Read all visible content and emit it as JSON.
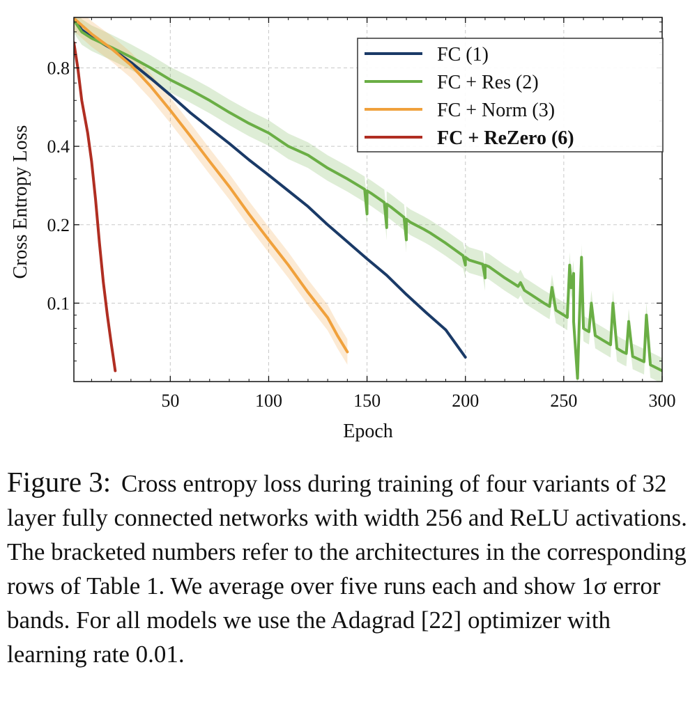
{
  "chart_data": {
    "type": "line",
    "xlabel": "Epoch",
    "ylabel": "Cross Entropy Loss",
    "xlim": [
      1,
      300
    ],
    "xticks": [
      50,
      100,
      150,
      200,
      250,
      300
    ],
    "ylim": [
      0.05,
      1.25
    ],
    "yscale": "log",
    "yticks": [
      0.1,
      0.2,
      0.4,
      0.8
    ],
    "grid": true,
    "legend_position": "top-right",
    "series": [
      {
        "name": "FC (1)",
        "color": "#1a3a67",
        "band": false,
        "points": [
          [
            1,
            1.23
          ],
          [
            5,
            1.12
          ],
          [
            10,
            1.05
          ],
          [
            20,
            0.95
          ],
          [
            30,
            0.84
          ],
          [
            40,
            0.73
          ],
          [
            50,
            0.63
          ],
          [
            60,
            0.54
          ],
          [
            70,
            0.47
          ],
          [
            80,
            0.41
          ],
          [
            90,
            0.355
          ],
          [
            100,
            0.31
          ],
          [
            110,
            0.27
          ],
          [
            120,
            0.235
          ],
          [
            130,
            0.2
          ],
          [
            140,
            0.172
          ],
          [
            150,
            0.148
          ],
          [
            160,
            0.128
          ],
          [
            170,
            0.108
          ],
          [
            180,
            0.092
          ],
          [
            190,
            0.079
          ],
          [
            195,
            0.07
          ],
          [
            200,
            0.062
          ]
        ]
      },
      {
        "name": "FC + Res (2)",
        "color": "#6aae45",
        "band": true,
        "points": [
          [
            1,
            1.22
          ],
          [
            5,
            1.1
          ],
          [
            10,
            1.04
          ],
          [
            20,
            0.96
          ],
          [
            30,
            0.88
          ],
          [
            40,
            0.8
          ],
          [
            50,
            0.72
          ],
          [
            60,
            0.66
          ],
          [
            70,
            0.6
          ],
          [
            80,
            0.54
          ],
          [
            90,
            0.49
          ],
          [
            100,
            0.45
          ],
          [
            110,
            0.4
          ],
          [
            120,
            0.37
          ],
          [
            130,
            0.33
          ],
          [
            140,
            0.3
          ],
          [
            150,
            0.27
          ],
          [
            160,
            0.24
          ],
          [
            170,
            0.21
          ],
          [
            180,
            0.19
          ],
          [
            190,
            0.17
          ],
          [
            200,
            0.15
          ],
          [
            210,
            0.14
          ],
          [
            220,
            0.125
          ],
          [
            230,
            0.112
          ],
          [
            240,
            0.1
          ],
          [
            250,
            0.09
          ],
          [
            260,
            0.08
          ],
          [
            270,
            0.072
          ],
          [
            280,
            0.065
          ],
          [
            290,
            0.06
          ],
          [
            300,
            0.055
          ]
        ],
        "spikes": [
          [
            150,
            0.22
          ],
          [
            160,
            0.195
          ],
          [
            170,
            0.175
          ],
          [
            180,
            0.19
          ],
          [
            200,
            0.14
          ],
          [
            210,
            0.125
          ],
          [
            228,
            0.12
          ],
          [
            244,
            0.115
          ],
          [
            253,
            0.14
          ],
          [
            255,
            0.13
          ],
          [
            259,
            0.15
          ],
          [
            264,
            0.1
          ],
          [
            275,
            0.1
          ],
          [
            283,
            0.085
          ],
          [
            292,
            0.09
          ]
        ]
      },
      {
        "name": "FC + Norm (3)",
        "color": "#f0a13c",
        "band": true,
        "points": [
          [
            1,
            1.24
          ],
          [
            10,
            1.08
          ],
          [
            20,
            0.95
          ],
          [
            30,
            0.82
          ],
          [
            40,
            0.68
          ],
          [
            50,
            0.55
          ],
          [
            60,
            0.44
          ],
          [
            70,
            0.35
          ],
          [
            80,
            0.28
          ],
          [
            90,
            0.22
          ],
          [
            100,
            0.175
          ],
          [
            110,
            0.14
          ],
          [
            120,
            0.11
          ],
          [
            130,
            0.088
          ],
          [
            135,
            0.075
          ],
          [
            140,
            0.065
          ]
        ]
      },
      {
        "name": "FC + ReZero (6)",
        "color": "#b02e22",
        "band": false,
        "bold": true,
        "points": [
          [
            1,
            1.0
          ],
          [
            3,
            0.8
          ],
          [
            5,
            0.6
          ],
          [
            8,
            0.45
          ],
          [
            10,
            0.35
          ],
          [
            12,
            0.25
          ],
          [
            14,
            0.17
          ],
          [
            16,
            0.12
          ],
          [
            18,
            0.09
          ],
          [
            20,
            0.07
          ],
          [
            21,
            0.062
          ],
          [
            22,
            0.055
          ]
        ]
      }
    ]
  },
  "caption": {
    "label": "Figure 3:",
    "text": "Cross entropy loss during training of four variants of 32 layer fully connected networks with width 256 and ReLU activations. The bracketed numbers refer to the architectures in the corresponding rows of Table 1. We average over five runs each and show 1σ error bands. For all models we use the Adagrad [22] optimizer with learning rate 0.01."
  }
}
